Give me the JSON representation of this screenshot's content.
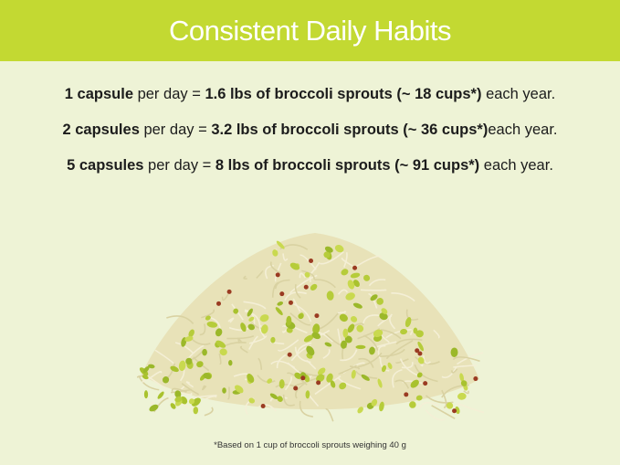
{
  "header": {
    "title": "Consistent Daily Habits",
    "color": "#c3d932"
  },
  "lines": [
    [
      {
        "t": "1 capsule",
        "b": true
      },
      {
        "t": " per day = ",
        "b": false
      },
      {
        "t": "1.6 lbs of broccoli sprouts (~ 18 cups*)",
        "b": true
      },
      {
        "t": " each year.",
        "b": false
      }
    ],
    [
      {
        "t": "2 capsules",
        "b": true
      },
      {
        "t": " per day = ",
        "b": false
      },
      {
        "t": "3.2 lbs of broccoli sprouts (~ 36 cups*)",
        "b": true
      },
      {
        "t": "each year.",
        "b": false
      }
    ],
    [
      {
        "t": "5 capsules",
        "b": true
      },
      {
        "t": " per day = ",
        "b": false
      },
      {
        "t": "8 lbs of broccoli sprouts (~ 91 cups*)",
        "b": true
      },
      {
        "t": " each year.",
        "b": false
      }
    ]
  ],
  "image": {
    "subject": "broccoli-sprouts-pile"
  },
  "footnote": "*Based on 1 cup of broccoli sprouts weighing 40 g"
}
